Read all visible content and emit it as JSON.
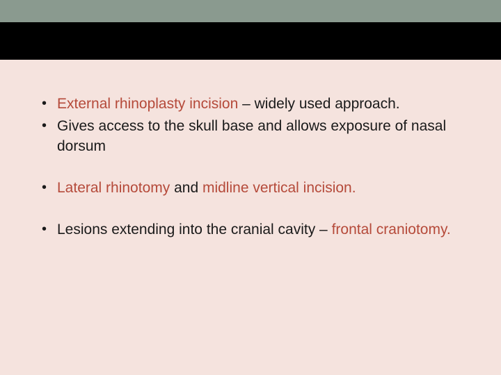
{
  "colors": {
    "top_bar": "#8a9a8f",
    "black_bar": "#000000",
    "background": "#f5e3de",
    "text": "#1a1a1a",
    "highlight": "#b54a3a"
  },
  "typography": {
    "font_family": "Arial",
    "body_fontsize_pt": 16,
    "line_height": 1.35
  },
  "bullets": [
    {
      "parts": [
        {
          "text": "External rhinoplasty incision",
          "highlight": true
        },
        {
          "text": " – widely used approach.",
          "highlight": false
        }
      ]
    },
    {
      "parts": [
        {
          "text": "Gives access to the skull base and allows exposure of nasal dorsum",
          "highlight": false
        }
      ]
    },
    {
      "parts": [
        {
          "text": "Lateral rhinotomy ",
          "highlight": true
        },
        {
          "text": "and ",
          "highlight": false
        },
        {
          "text": "midline vertical incision.",
          "highlight": true
        }
      ]
    },
    {
      "parts": [
        {
          "text": "Lesions extending into the cranial cavity – ",
          "highlight": false
        },
        {
          "text": "frontal craniotomy.",
          "highlight": true
        }
      ]
    }
  ]
}
